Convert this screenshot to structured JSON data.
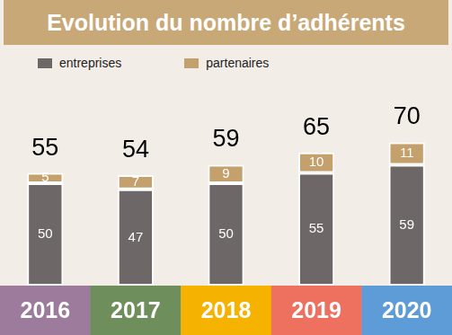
{
  "chart_data": {
    "type": "bar",
    "title": "Evolution du nombre d’adhérents",
    "categories": [
      "2016",
      "2017",
      "2018",
      "2019",
      "2020"
    ],
    "series": [
      {
        "name": "entreprises",
        "color": "#6d6767",
        "values": [
          50,
          47,
          50,
          55,
          59
        ]
      },
      {
        "name": "partenaires",
        "color": "#c3a06c",
        "values": [
          5,
          7,
          9,
          10,
          11
        ]
      }
    ],
    "totals": [
      55,
      54,
      59,
      65,
      70
    ],
    "stacked": true,
    "data_labels": true,
    "tick_labels": "x",
    "grid": false,
    "legend": "top"
  }
}
